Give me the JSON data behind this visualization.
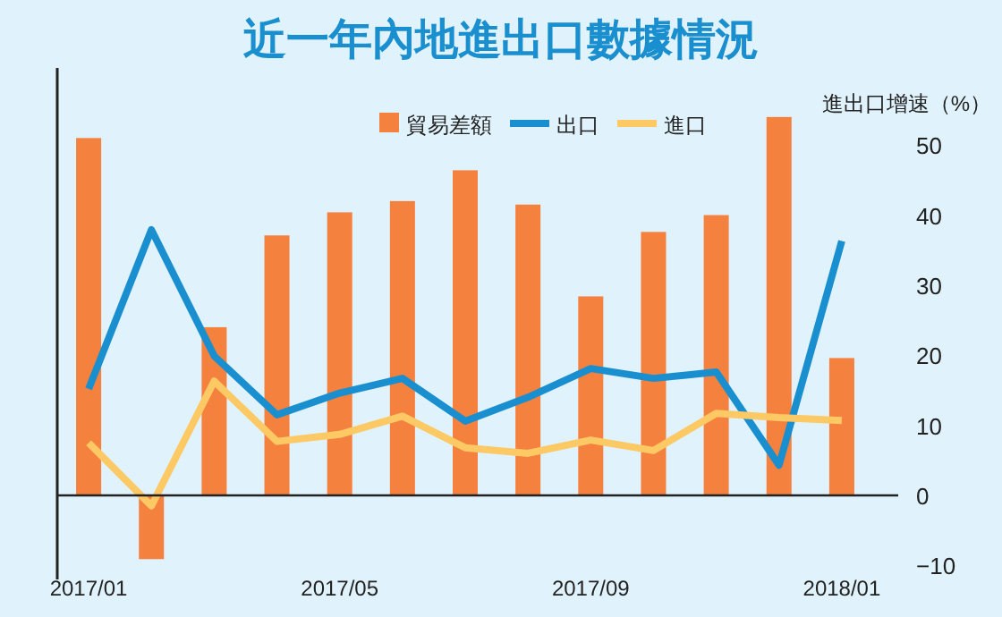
{
  "chart_data": {
    "type": "bar",
    "title": "近一年內地進出口數據情況",
    "ylabel": "進出口增速（%）",
    "categories": [
      "2017/01",
      null,
      null,
      null,
      "2017/05",
      null,
      null,
      null,
      "2017/09",
      null,
      null,
      null,
      "2018/01"
    ],
    "series": [
      {
        "name": "貿易差額",
        "color": "#f5813f",
        "values": [
          51.0,
          -9.1,
          24.0,
          37.1,
          40.4,
          42.0,
          46.4,
          41.5,
          28.4,
          37.6,
          40.0,
          54.0,
          19.6
        ]
      },
      {
        "name": "出口",
        "type": "line",
        "color": "#1a8fcf",
        "values": [
          15.2,
          37.9,
          19.9,
          11.5,
          14.6,
          16.7,
          10.6,
          14.0,
          18.1,
          16.7,
          17.6,
          4.3,
          36.3
        ]
      },
      {
        "name": "進口",
        "type": "line",
        "color": "#fdc964",
        "values": [
          7.5,
          -1.5,
          16.3,
          7.7,
          8.7,
          11.3,
          6.8,
          6.0,
          7.9,
          6.4,
          11.7,
          11.1,
          10.7
        ]
      }
    ],
    "ylim": [
      -12,
      61
    ],
    "yticks": [
      -10,
      0,
      10,
      20,
      30,
      40,
      50
    ],
    "legend": "top right",
    "line_style": "solid"
  }
}
